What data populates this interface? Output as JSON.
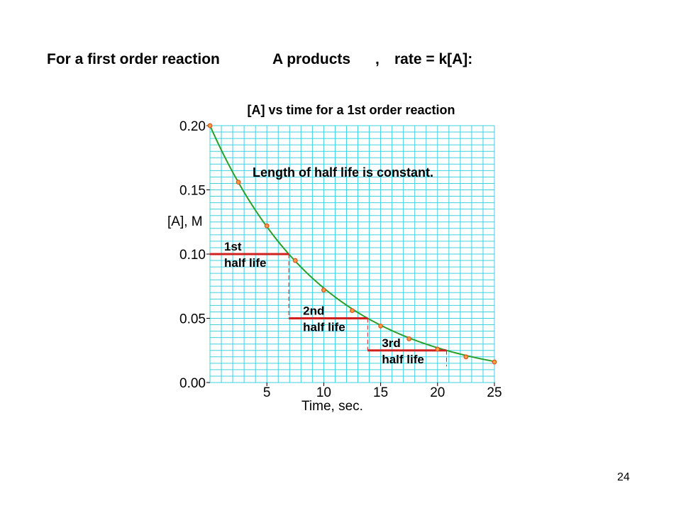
{
  "slide": {
    "heading_prefix": "For a first order reaction",
    "heading_reaction": "A products",
    "heading_comma": ",",
    "heading_rate": "rate = k[A]:",
    "page_number": "24"
  },
  "chart_data": {
    "type": "scatter",
    "title": "[A] vs time for a 1st order reaction",
    "xlabel": "Time, sec.",
    "ylabel": "[A], M",
    "xlim": [
      0,
      25
    ],
    "ylim": [
      0,
      0.2
    ],
    "x_ticks": [
      {
        "value": 5,
        "label": "5"
      },
      {
        "value": 10,
        "label": "10"
      },
      {
        "value": 15,
        "label": "15"
      },
      {
        "value": 20,
        "label": "20"
      },
      {
        "value": 25,
        "label": "25"
      }
    ],
    "y_ticks": [
      {
        "value": 0.0,
        "label": "0.00"
      },
      {
        "value": 0.05,
        "label": "0.05"
      },
      {
        "value": 0.1,
        "label": "0.10"
      },
      {
        "value": 0.15,
        "label": "0.15"
      },
      {
        "value": 0.2,
        "label": "0.20"
      }
    ],
    "grid": true,
    "grid_color": "#40d0e0",
    "curve_color": "#2aa02a",
    "marker_color": "#e05020",
    "halflife_color": "#d02020",
    "points": {
      "x": [
        0,
        2.5,
        5,
        7.5,
        10,
        12.5,
        15,
        17.5,
        20,
        22.5,
        25
      ],
      "y": [
        0.2,
        0.156,
        0.122,
        0.095,
        0.072,
        0.056,
        0.044,
        0.034,
        0.026,
        0.02,
        0.016
      ]
    },
    "curve": {
      "initial_value": 0.2,
      "half_life": 6.93,
      "x_max": 25
    },
    "annotation": "Length of half life is constant.",
    "half_lives": [
      {
        "label_line1": "1st",
        "label_line2": "half life",
        "x_start": 0,
        "x_end": 6.93,
        "y": 0.1
      },
      {
        "label_line1": "2nd",
        "label_line2": "half life",
        "x_start": 6.93,
        "x_end": 13.86,
        "y": 0.05
      },
      {
        "label_line1": "3rd",
        "label_line2": "half life",
        "x_start": 13.86,
        "x_end": 20.79,
        "y": 0.025
      }
    ]
  }
}
